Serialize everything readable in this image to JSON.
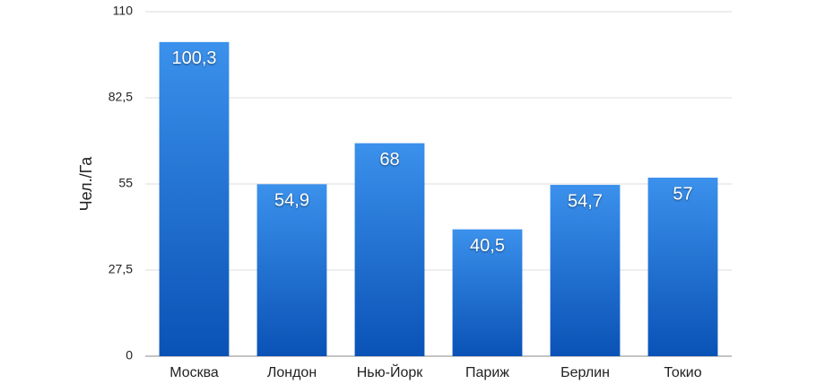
{
  "chart_data": {
    "type": "bar",
    "y_label": "Чел./Га",
    "categories": [
      "Москва",
      "Лондон",
      "Нью-Йорк",
      "Париж",
      "Берлин",
      "Токио"
    ],
    "values": [
      100.3,
      54.9,
      68,
      40.5,
      54.7,
      57
    ],
    "value_labels": [
      "100,3",
      "54,9",
      "68",
      "40,5",
      "54,7",
      "57"
    ],
    "color": "#2a7ee0",
    "ylim": [
      0,
      110
    ],
    "yticks": [
      0,
      {
        "value": 27.5,
        "label": "27,5"
      },
      55,
      {
        "value": 82.5,
        "label": "82,5"
      },
      110
    ],
    "grid": true
  }
}
